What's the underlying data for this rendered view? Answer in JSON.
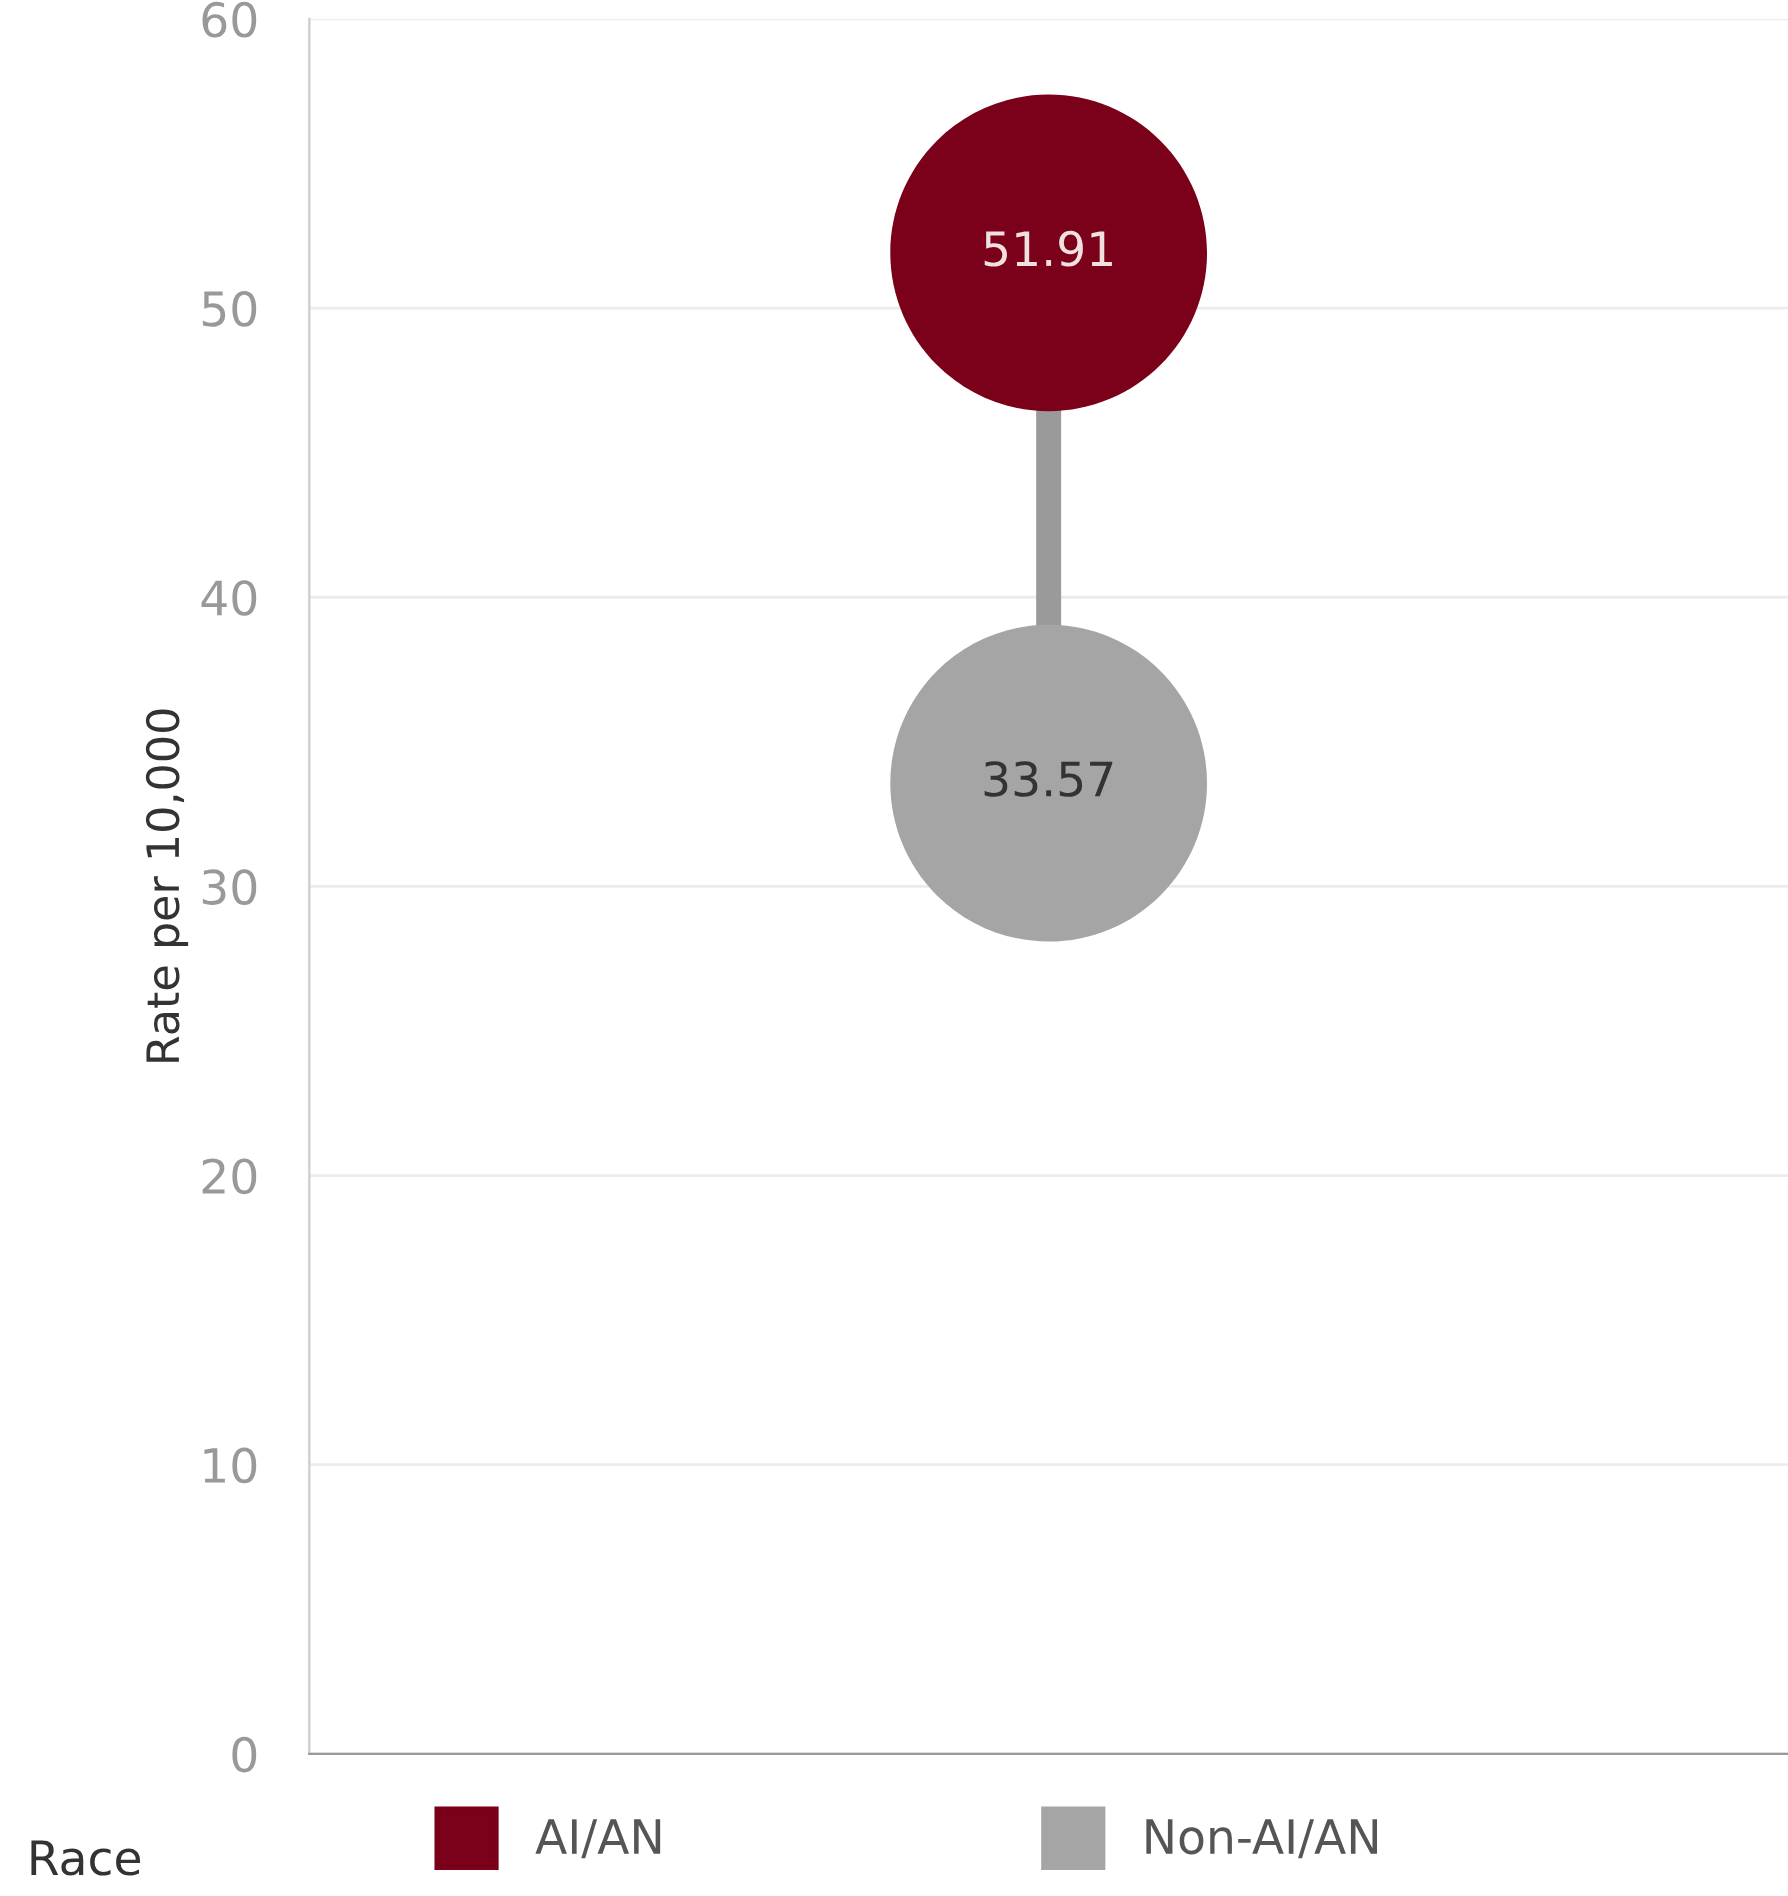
{
  "chart_data": {
    "type": "scatter",
    "ylabel": "Rate per 10,000",
    "legend_title": "Race",
    "categories": [
      null
    ],
    "series": [
      {
        "name": "AI/AN",
        "color": "#7b0019",
        "values": [
          51.91
        ],
        "value_labels": [
          "51.91"
        ]
      },
      {
        "name": "Non-AI/AN",
        "color": "#a5a5a5",
        "values": [
          33.57
        ],
        "value_labels": [
          "33.57"
        ]
      }
    ],
    "ylim": [
      0,
      60
    ],
    "yticks": [
      0,
      10,
      20,
      30,
      40,
      50,
      60
    ],
    "grid": "y",
    "legend": "bottom",
    "marker": "circle",
    "tick_labels": "y"
  }
}
